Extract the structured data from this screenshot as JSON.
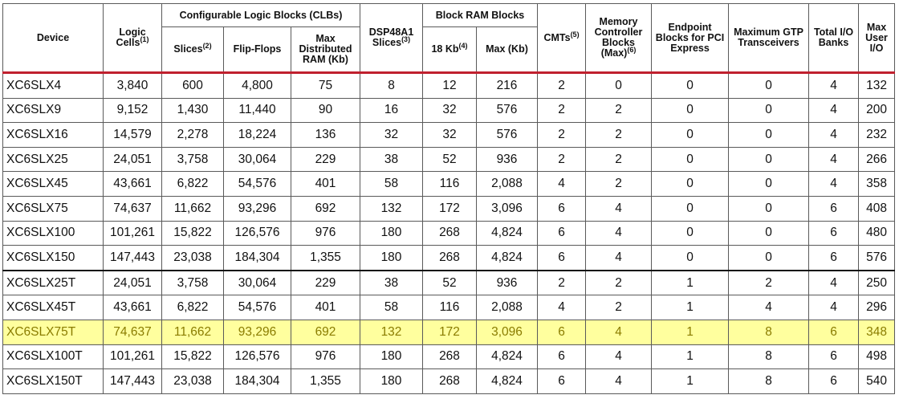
{
  "headers": {
    "device": "Device",
    "logic_cells": "Logic Cells",
    "logic_cells_note": "(1)",
    "clb_group": "Configurable Logic Blocks (CLBs)",
    "slices": "Slices",
    "slices_note": "(2)",
    "flip_flops": "Flip-Flops",
    "max_dist_ram": "Max Distributed RAM (Kb)",
    "dsp": "DSP48A1 Slices",
    "dsp_note": "(3)",
    "bram_group": "Block RAM Blocks",
    "bram_18kb": "18 Kb",
    "bram_18kb_note": "(4)",
    "bram_max": "Max (Kb)",
    "cmts": "CMTs",
    "cmts_note": "(5)",
    "mem_ctrl": "Memory Controller Blocks (Max)",
    "mem_ctrl_note": "(6)",
    "pcie": "Endpoint Blocks for PCI Express",
    "gtp": "Maximum GTP Transceivers",
    "io_banks": "Total I/O Banks",
    "max_user_io": "Max User I/O"
  },
  "rows": [
    [
      "XC6SLX4",
      "3,840",
      "600",
      "4,800",
      "75",
      "8",
      "12",
      "216",
      "2",
      "0",
      "0",
      "0",
      "4",
      "132"
    ],
    [
      "XC6SLX9",
      "9,152",
      "1,430",
      "11,440",
      "90",
      "16",
      "32",
      "576",
      "2",
      "2",
      "0",
      "0",
      "4",
      "200"
    ],
    [
      "XC6SLX16",
      "14,579",
      "2,278",
      "18,224",
      "136",
      "32",
      "32",
      "576",
      "2",
      "2",
      "0",
      "0",
      "4",
      "232"
    ],
    [
      "XC6SLX25",
      "24,051",
      "3,758",
      "30,064",
      "229",
      "38",
      "52",
      "936",
      "2",
      "2",
      "0",
      "0",
      "4",
      "266"
    ],
    [
      "XC6SLX45",
      "43,661",
      "6,822",
      "54,576",
      "401",
      "58",
      "116",
      "2,088",
      "4",
      "2",
      "0",
      "0",
      "4",
      "358"
    ],
    [
      "XC6SLX75",
      "74,637",
      "11,662",
      "93,296",
      "692",
      "132",
      "172",
      "3,096",
      "6",
      "4",
      "0",
      "0",
      "6",
      "408"
    ],
    [
      "XC6SLX100",
      "101,261",
      "15,822",
      "126,576",
      "976",
      "180",
      "268",
      "4,824",
      "6",
      "4",
      "0",
      "0",
      "6",
      "480"
    ],
    [
      "XC6SLX150",
      "147,443",
      "23,038",
      "184,304",
      "1,355",
      "180",
      "268",
      "4,824",
      "6",
      "4",
      "0",
      "0",
      "6",
      "576"
    ],
    [
      "XC6SLX25T",
      "24,051",
      "3,758",
      "30,064",
      "229",
      "38",
      "52",
      "936",
      "2",
      "2",
      "1",
      "2",
      "4",
      "250"
    ],
    [
      "XC6SLX45T",
      "43,661",
      "6,822",
      "54,576",
      "401",
      "58",
      "116",
      "2,088",
      "4",
      "2",
      "1",
      "4",
      "4",
      "296"
    ],
    [
      "XC6SLX75T",
      "74,637",
      "11,662",
      "93,296",
      "692",
      "132",
      "172",
      "3,096",
      "6",
      "4",
      "1",
      "8",
      "6",
      "348"
    ],
    [
      "XC6SLX100T",
      "101,261",
      "15,822",
      "126,576",
      "976",
      "180",
      "268",
      "4,824",
      "6",
      "4",
      "1",
      "8",
      "6",
      "498"
    ],
    [
      "XC6SLX150T",
      "147,443",
      "23,038",
      "184,304",
      "1,355",
      "180",
      "268",
      "4,824",
      "6",
      "4",
      "1",
      "8",
      "6",
      "540"
    ]
  ],
  "highlighted_row": 10,
  "group_break_row": 8,
  "colors": {
    "header_rule": "#c0202e",
    "highlight_bg": "#ffff9e",
    "highlight_text": "#8a7c00",
    "grid": "#5a5a5a"
  }
}
